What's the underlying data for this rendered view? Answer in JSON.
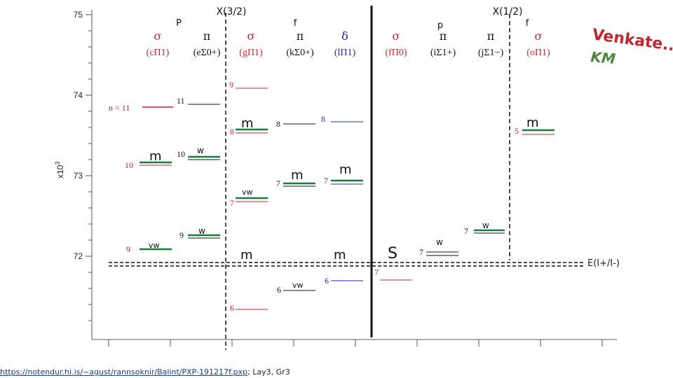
{
  "axis": {
    "exponent_label": "x10",
    "exponent_power": "3",
    "tick_labels": [
      "75",
      "74",
      "73",
      "72"
    ]
  },
  "region_titles": {
    "omega_3_2": "X(3/2)",
    "omega_1_2": "X(1/2)",
    "left_P": "P",
    "left_f": "f",
    "right_p": "p",
    "right_f": "f"
  },
  "states": [
    {
      "symbol": "σ",
      "term": "(cΠ1)",
      "color": "#c0272d"
    },
    {
      "symbol": "π",
      "term": "(eΣ0+)",
      "color": "#c0272d"
    },
    {
      "symbol": "σ",
      "term": "(gΠ1)",
      "color": "#c0272d"
    },
    {
      "symbol": "π",
      "term": "(kΣ0+)",
      "color": "#111111"
    },
    {
      "symbol": "δ",
      "term": "(lΠ1)",
      "color": "#1f2aa8"
    },
    {
      "symbol": "σ",
      "term": "(fΠ0)",
      "color": "#c0272d"
    },
    {
      "symbol": "π",
      "term": "(iΣ1+)",
      "color": "#111111"
    },
    {
      "symbol": "π",
      "term": "(jΣ1−)",
      "color": "#111111"
    },
    {
      "symbol": "σ",
      "term": "(oΠ1)",
      "color": "#c0272d"
    }
  ],
  "level_labels": {
    "n11_prefix": "n = 11",
    "c10": "10",
    "c9": "9",
    "e11": "11",
    "e10": "10",
    "e9": "9",
    "g9": "9",
    "g8": "8",
    "g7": "7",
    "g6": "6",
    "k8": "8",
    "k7": "7",
    "k6": "6",
    "l8": "8",
    "l7": "7",
    "l6": "6",
    "f7": "7",
    "i7": "7",
    "j7": "7",
    "o5": "5"
  },
  "intensity_marks": {
    "c10": "m",
    "c9": "vw",
    "e10": "w",
    "e9": "w",
    "g8": "m",
    "g7": "vw",
    "g_thresh": "m",
    "k7": "m",
    "k6": "vw",
    "l7": "m",
    "l_thresh": "m",
    "f_thresh": "S",
    "i7": "w",
    "j7": "w",
    "o5": "m"
  },
  "threshold_label": "E(I+/I-)",
  "author_note": {
    "line1": "Venkate..",
    "line2": "KM",
    "color1": "#c0272d",
    "color2": "#4a8a3a"
  },
  "credit": {
    "link_text": "https://notendur.hi.is/~agust/rannsoknir/Balint/PXP-191217f.pxp",
    "suffix": "; Lay3, Gr3"
  },
  "colors": {
    "red": "#c0272d",
    "green": "#1a7a3a",
    "blue": "#1f2aa8",
    "black": "#111111",
    "grey": "#888888"
  }
}
